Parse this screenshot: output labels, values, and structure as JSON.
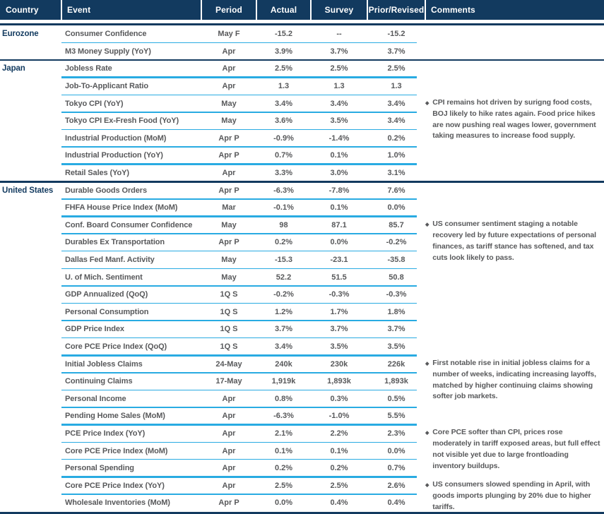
{
  "colors": {
    "navy": "#123A5F",
    "cyan": "#29ABE2",
    "gray": "#58595B",
    "header_text": "#FFFFFF"
  },
  "bullet_glyph": "◆",
  "header": {
    "columns": [
      "Country",
      "Event",
      "Period",
      "Actual",
      "Survey",
      "Prior/Revised",
      "Comments"
    ]
  },
  "sections": [
    {
      "country": "Eurozone",
      "rows": [
        {
          "event": "Consumer Confidence",
          "period": "May F",
          "actual": "-15.2",
          "survey": "--",
          "prior": "-15.2",
          "divider": "thin"
        },
        {
          "event": "M3 Money Supply (YoY)",
          "period": "Apr",
          "actual": "3.9%",
          "survey": "3.7%",
          "prior": "3.7%",
          "divider": "navy"
        }
      ]
    },
    {
      "country": "Japan",
      "rows": [
        {
          "event": "Jobless Rate",
          "period": "Apr",
          "actual": "2.5%",
          "survey": "2.5%",
          "prior": "2.5%",
          "divider": "thick"
        },
        {
          "event": "Job-To-Applicant Ratio",
          "period": "Apr",
          "actual": "1.3",
          "survey": "1.3",
          "prior": "1.3",
          "divider": "thin"
        },
        {
          "event": "Tokyo CPI (YoY)",
          "period": "May",
          "actual": "3.4%",
          "survey": "3.4%",
          "prior": "3.4%",
          "divider": "thin",
          "comment": "CPI remains hot driven by surigng food costs, BOJ likely to hike rates again. Food price hikes are now pushing real wages lower, government taking measures to increase food supply."
        },
        {
          "event": "Tokyo CPI Ex-Fresh Food (YoY)",
          "period": "May",
          "actual": "3.6%",
          "survey": "3.5%",
          "prior": "3.4%",
          "divider": "thin"
        },
        {
          "event": "Industrial Production (MoM)",
          "period": "Apr P",
          "actual": "-0.9%",
          "survey": "-1.4%",
          "prior": "0.2%",
          "divider": "thick"
        },
        {
          "event": "Industrial Production (YoY)",
          "period": "Apr P",
          "actual": "0.7%",
          "survey": "0.1%",
          "prior": "1.0%",
          "divider": "thick"
        },
        {
          "event": "Retail Sales (YoY)",
          "period": "Apr",
          "actual": "3.3%",
          "survey": "3.0%",
          "prior": "3.1%",
          "divider": "navy"
        }
      ]
    },
    {
      "country": "United States",
      "rows": [
        {
          "event": "Durable Goods Orders",
          "period": "Apr P",
          "actual": "-6.3%",
          "survey": "-7.8%",
          "prior": "7.6%",
          "divider": "thin"
        },
        {
          "event": "FHFA House Price Index (MoM)",
          "period": "Mar",
          "actual": "-0.1%",
          "survey": "0.1%",
          "prior": "0.0%",
          "divider": "thick"
        },
        {
          "event": "Conf. Board Consumer Confidence",
          "period": "May",
          "actual": "98",
          "survey": "87.1",
          "prior": "85.7",
          "divider": "thin",
          "comment": "US consumer sentiment staging a notable recovery led by future expectations of personal finances, as tariff stance has softened, and tax cuts look likely to pass."
        },
        {
          "event": "Durables Ex Transportation",
          "period": "Apr P",
          "actual": "0.2%",
          "survey": "0.0%",
          "prior": "-0.2%",
          "divider": "thin"
        },
        {
          "event": "Dallas Fed Manf. Activity",
          "period": "May",
          "actual": "-15.3",
          "survey": "-23.1",
          "prior": "-35.8",
          "divider": "thin"
        },
        {
          "event": "U. of Mich. Sentiment",
          "period": "May",
          "actual": "52.2",
          "survey": "51.5",
          "prior": "50.8",
          "divider": "thick"
        },
        {
          "event": "GDP Annualized (QoQ)",
          "period": "1Q S",
          "actual": "-0.2%",
          "survey": "-0.3%",
          "prior": "-0.3%",
          "divider": "thin"
        },
        {
          "event": "Personal Consumption",
          "period": "1Q S",
          "actual": "1.2%",
          "survey": "1.7%",
          "prior": "1.8%",
          "divider": "thin"
        },
        {
          "event": "GDP Price Index",
          "period": "1Q S",
          "actual": "3.7%",
          "survey": "3.7%",
          "prior": "3.7%",
          "divider": "thin"
        },
        {
          "event": "Core PCE Price Index (QoQ)",
          "period": "1Q S",
          "actual": "3.4%",
          "survey": "3.5%",
          "prior": "3.5%",
          "divider": "thick"
        },
        {
          "event": "Initial Jobless Claims",
          "period": "24-May",
          "actual": "240k",
          "survey": "230k",
          "prior": "226k",
          "divider": "thin",
          "comment": "First notable rise in initial jobless claims for a number of weeks, indicating increasing layoffs, matched by higher continuing claims showing softer job markets."
        },
        {
          "event": "Continuing Claims",
          "period": "17-May",
          "actual": "1,919k",
          "survey": "1,893k",
          "prior": "1,893k",
          "divider": "thin"
        },
        {
          "event": "Personal Income",
          "period": "Apr",
          "actual": "0.8%",
          "survey": "0.3%",
          "prior": "0.5%",
          "divider": "thin"
        },
        {
          "event": "Pending Home Sales (MoM)",
          "period": "Apr",
          "actual": "-6.3%",
          "survey": "-1.0%",
          "prior": "5.5%",
          "divider": "thick"
        },
        {
          "event": "PCE Price Index (YoY)",
          "period": "Apr",
          "actual": "2.1%",
          "survey": "2.2%",
          "prior": "2.3%",
          "divider": "thin",
          "comment": "Core PCE softer than CPI, prices rose moderately in tariff exposed areas, but full effect not visible yet due to large frontloading inventory buildups."
        },
        {
          "event": "Core PCE Price Index (MoM)",
          "period": "Apr",
          "actual": "0.1%",
          "survey": "0.1%",
          "prior": "0.0%",
          "divider": "thin"
        },
        {
          "event": "Personal Spending",
          "period": "Apr",
          "actual": "0.2%",
          "survey": "0.2%",
          "prior": "0.7%",
          "divider": "thick"
        },
        {
          "event": "Core PCE Price Index (YoY)",
          "period": "Apr",
          "actual": "2.5%",
          "survey": "2.5%",
          "prior": "2.6%",
          "divider": "thick",
          "comment": "US consumers slowed spending in April, with goods imports plunging by 20% due to higher tariffs."
        },
        {
          "event": "Wholesale Inventories (MoM)",
          "period": "Apr P",
          "actual": "0.0%",
          "survey": "0.4%",
          "prior": "0.4%",
          "divider": "none"
        }
      ]
    }
  ]
}
